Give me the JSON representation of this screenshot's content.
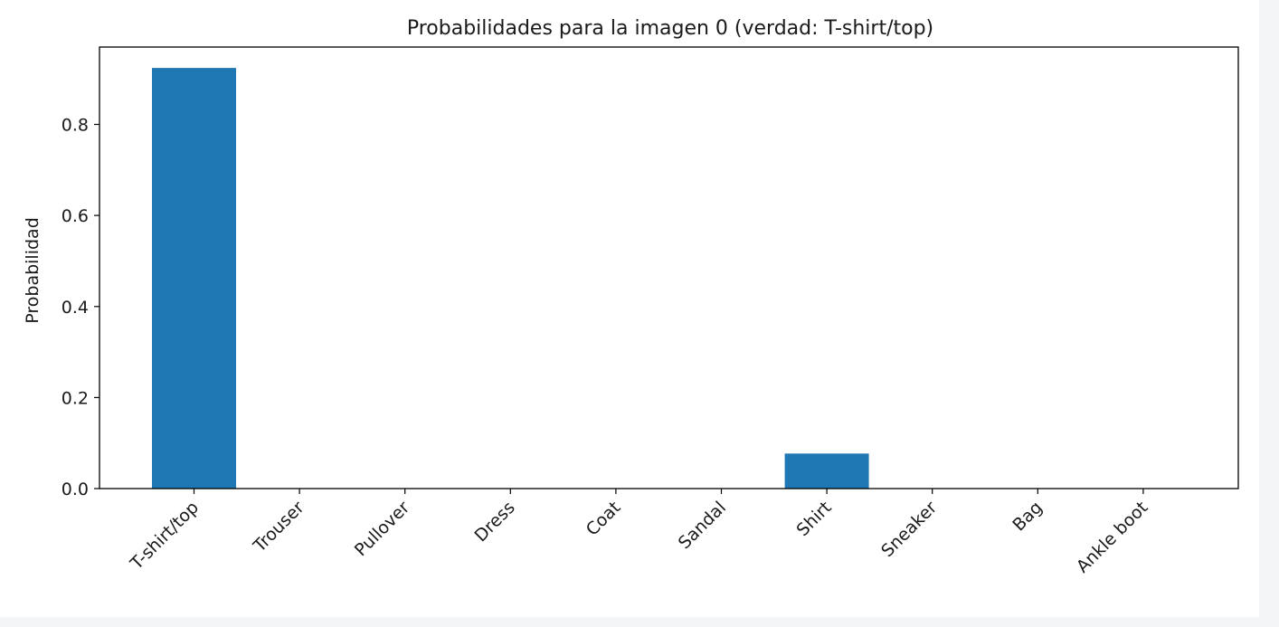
{
  "chart_data": {
    "type": "bar",
    "title": "Probabilidades para la imagen 0 (verdad: T-shirt/top)",
    "xlabel": "",
    "ylabel": "Probabilidad",
    "categories": [
      "T-shirt/top",
      "Trouser",
      "Pullover",
      "Dress",
      "Coat",
      "Sandal",
      "Shirt",
      "Sneaker",
      "Bag",
      "Ankle boot"
    ],
    "values": [
      0.924,
      0.0,
      0.0,
      0.0,
      0.0,
      0.0,
      0.077,
      0.0,
      0.0,
      0.0
    ],
    "ylim": [
      0.0,
      0.97
    ],
    "yticks": [
      0.0,
      0.2,
      0.4,
      0.6,
      0.8
    ],
    "ytick_labels": [
      "0.0",
      "0.2",
      "0.4",
      "0.6",
      "0.8"
    ],
    "bar_color": "#1f77b4",
    "grid": false,
    "legend": "none"
  }
}
